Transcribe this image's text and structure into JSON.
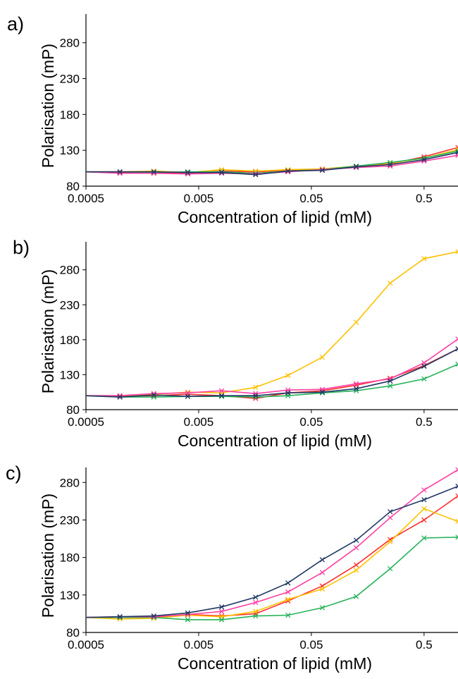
{
  "chart_data": [
    {
      "panel_label": "a)",
      "type": "line",
      "xlabel": "Concentration of lipid (mM)",
      "ylabel": "Polarisation (mP)",
      "x_scale": "log",
      "xlim": [
        0.0005,
        1.0
      ],
      "ylim": [
        80,
        320
      ],
      "x_ticks": [
        {
          "value": 0.0005,
          "label": "0.0005"
        },
        {
          "value": 0.005,
          "label": "0.005"
        },
        {
          "value": 0.05,
          "label": "0.05"
        },
        {
          "value": 0.5,
          "label": "0.5"
        }
      ],
      "y_ticks": [
        {
          "value": 80,
          "label": "80"
        },
        {
          "value": 130,
          "label": "130"
        },
        {
          "value": 180,
          "label": "180"
        },
        {
          "value": 230,
          "label": "230"
        },
        {
          "value": 280,
          "label": "280"
        }
      ],
      "grid": false,
      "x": [
        0.0005,
        0.001,
        0.002,
        0.004,
        0.008,
        0.016,
        0.031,
        0.0625,
        0.125,
        0.25,
        0.5,
        1.0
      ],
      "series": [
        {
          "color": "#FF2D2D",
          "values": [
            100,
            99,
            98,
            98,
            101,
            100,
            102,
            104,
            107,
            111,
            121,
            134
          ]
        },
        {
          "color": "#FFC000",
          "values": [
            100,
            100,
            101,
            99,
            103,
            101,
            103,
            104,
            108,
            112,
            119,
            131
          ]
        },
        {
          "color": "#26B35A",
          "values": [
            100,
            100,
            99,
            100,
            100,
            98,
            101,
            103,
            108,
            113,
            119,
            129
          ]
        },
        {
          "color": "#FF3FA4",
          "values": [
            100,
            98,
            98,
            97,
            98,
            97,
            100,
            103,
            106,
            108,
            115,
            123
          ]
        },
        {
          "color": "#203864",
          "values": [
            100,
            100,
            100,
            99,
            99,
            96,
            101,
            102,
            107,
            110,
            117,
            127
          ]
        }
      ]
    },
    {
      "panel_label": "b)",
      "type": "line",
      "xlabel": "Concentration of lipid (mM)",
      "ylabel": "Polarisation (mP)",
      "x_scale": "log",
      "xlim": [
        0.0005,
        1.0
      ],
      "ylim": [
        80,
        320
      ],
      "x_ticks": [
        {
          "value": 0.0005,
          "label": "0.0005"
        },
        {
          "value": 0.005,
          "label": "0.005"
        },
        {
          "value": 0.05,
          "label": "0.05"
        },
        {
          "value": 0.5,
          "label": "0.5"
        }
      ],
      "y_ticks": [
        {
          "value": 80,
          "label": "80"
        },
        {
          "value": 130,
          "label": "130"
        },
        {
          "value": 180,
          "label": "180"
        },
        {
          "value": 230,
          "label": "230"
        },
        {
          "value": 280,
          "label": "280"
        }
      ],
      "grid": false,
      "x": [
        0.0005,
        0.001,
        0.002,
        0.004,
        0.008,
        0.016,
        0.031,
        0.0625,
        0.125,
        0.25,
        0.5,
        1.0
      ],
      "series": [
        {
          "color": "#FF2D2D",
          "values": [
            100,
            99,
            100,
            102,
            100,
            96,
            104,
            107,
            115,
            125,
            143,
            167
          ]
        },
        {
          "color": "#FFC000",
          "values": [
            100,
            100,
            102,
            105,
            104,
            112,
            129,
            155,
            205,
            261,
            296,
            306
          ]
        },
        {
          "color": "#26B35A",
          "values": [
            100,
            98,
            98,
            99,
            99,
            98,
            100,
            104,
            107,
            114,
            124,
            145
          ]
        },
        {
          "color": "#FF3FA4",
          "values": [
            100,
            100,
            103,
            104,
            107,
            103,
            108,
            109,
            117,
            124,
            147,
            181
          ]
        },
        {
          "color": "#203864",
          "values": [
            100,
            98,
            101,
            99,
            100,
            100,
            104,
            105,
            110,
            121,
            142,
            167
          ]
        }
      ]
    },
    {
      "panel_label": "c)",
      "type": "line",
      "xlabel": "Concentration of lipid (mM)",
      "ylabel": "Polarisation (mP)",
      "x_scale": "log",
      "xlim": [
        0.0005,
        1.0
      ],
      "ylim": [
        80,
        300
      ],
      "x_ticks": [
        {
          "value": 0.0005,
          "label": "0.0005"
        },
        {
          "value": 0.005,
          "label": "0.005"
        },
        {
          "value": 0.05,
          "label": "0.05"
        },
        {
          "value": 0.5,
          "label": "0.5"
        }
      ],
      "y_ticks": [
        {
          "value": 80,
          "label": "80"
        },
        {
          "value": 130,
          "label": "130"
        },
        {
          "value": 180,
          "label": "180"
        },
        {
          "value": 230,
          "label": "230"
        },
        {
          "value": 280,
          "label": "280"
        }
      ],
      "grid": false,
      "x": [
        0.0005,
        0.001,
        0.002,
        0.004,
        0.008,
        0.016,
        0.031,
        0.0625,
        0.125,
        0.25,
        0.5,
        1.0
      ],
      "series": [
        {
          "color": "#FF2D2D",
          "values": [
            100,
            100,
            100,
            104,
            102,
            105,
            122,
            142,
            170,
            204,
            230,
            262
          ]
        },
        {
          "color": "#FFC000",
          "values": [
            100,
            98,
            99,
            103,
            101,
            108,
            124,
            138,
            163,
            201,
            245,
            228
          ]
        },
        {
          "color": "#26B35A",
          "values": [
            100,
            100,
            100,
            97,
            97,
            102,
            103,
            113,
            128,
            165,
            206,
            207
          ]
        },
        {
          "color": "#FF3FA4",
          "values": [
            100,
            101,
            101,
            104,
            108,
            120,
            134,
            160,
            193,
            233,
            270,
            297
          ]
        },
        {
          "color": "#203864",
          "values": [
            100,
            101,
            102,
            106,
            114,
            127,
            146,
            177,
            203,
            241,
            257,
            275
          ]
        }
      ]
    }
  ]
}
